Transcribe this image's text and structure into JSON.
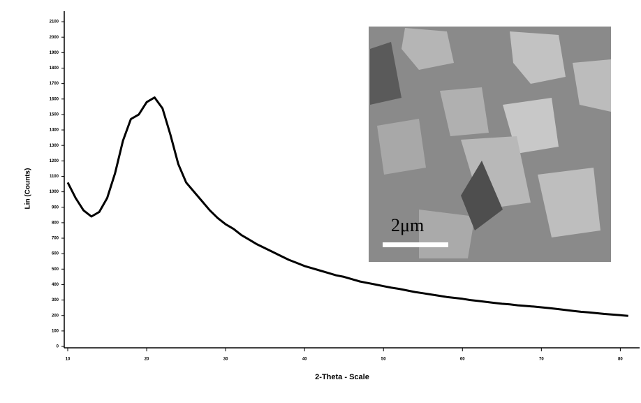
{
  "chart_data": {
    "type": "line",
    "x_label": "2-Theta - Scale",
    "y_label": "Lin (Counts)",
    "x": [
      10,
      11,
      12,
      13,
      14,
      15,
      16,
      17,
      18,
      19,
      20,
      21,
      22,
      23,
      24,
      25,
      26,
      27,
      28,
      29,
      30,
      31,
      32,
      33,
      34,
      35,
      36,
      37,
      38,
      39,
      40,
      41,
      42,
      43,
      44,
      45,
      46,
      47,
      48,
      49,
      50,
      51,
      52,
      53,
      54,
      55,
      56,
      57,
      58,
      59,
      60,
      61,
      62,
      63,
      64,
      65,
      66,
      67,
      68,
      69,
      70,
      71,
      72,
      73,
      74,
      75,
      76,
      77,
      78,
      79,
      80,
      81
    ],
    "values": [
      1060,
      960,
      880,
      840,
      870,
      960,
      1120,
      1330,
      1470,
      1500,
      1580,
      1610,
      1540,
      1370,
      1180,
      1060,
      1000,
      940,
      880,
      830,
      790,
      760,
      720,
      690,
      660,
      635,
      610,
      585,
      560,
      540,
      520,
      505,
      490,
      475,
      460,
      450,
      435,
      420,
      410,
      400,
      390,
      380,
      372,
      362,
      352,
      344,
      336,
      328,
      320,
      314,
      308,
      300,
      294,
      288,
      282,
      276,
      272,
      266,
      262,
      258,
      253,
      248,
      242,
      236,
      230,
      224,
      220,
      215,
      210,
      206,
      202,
      198
    ],
    "color": "#000000",
    "xlim": [
      10,
      82
    ],
    "xticks": [
      10,
      20,
      30,
      40,
      50,
      60,
      70,
      80
    ],
    "ylim": [
      0,
      2150
    ],
    "yticks": [
      0,
      100,
      200,
      300,
      400,
      500,
      600,
      700,
      800,
      900,
      1000,
      1100,
      1200,
      1300,
      1400,
      1500,
      1600,
      1700,
      1800,
      1900,
      2000,
      2100
    ],
    "inset_label": "2μm"
  }
}
